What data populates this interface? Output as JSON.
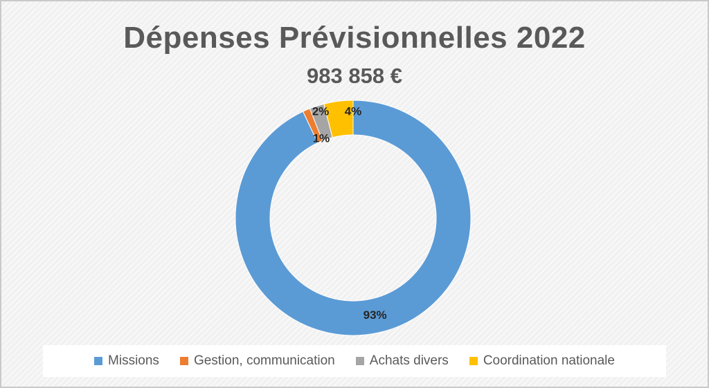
{
  "chart_data": {
    "type": "pie",
    "variant": "donut",
    "title": "Dépenses Prévisionnelles 2022",
    "subtitle": "983 858 €",
    "categories": [
      "Missions",
      "Gestion, communication",
      "Achats divers",
      "Coordination nationale"
    ],
    "values": [
      93,
      1,
      2,
      4
    ],
    "data_labels": [
      "93%",
      "1%",
      "2%",
      "4%"
    ],
    "colors": [
      "#5B9BD5",
      "#ED7D31",
      "#A5A5A5",
      "#FFC000"
    ],
    "legend_position": "bottom"
  }
}
